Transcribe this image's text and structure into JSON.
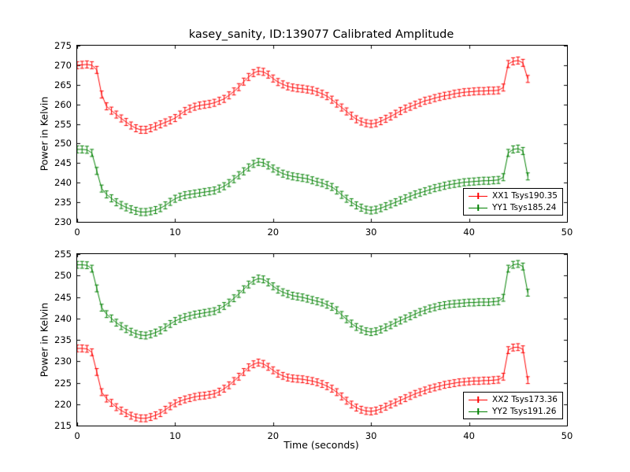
{
  "figure": {
    "title": "kasey_sanity, ID:139077 Calibrated Amplitude",
    "xlabel": "Time (seconds)",
    "background": "#ffffff"
  },
  "colors": {
    "red": "#ff0000",
    "green": "#008000",
    "frame": "#000000"
  },
  "chart_data": [
    {
      "type": "line",
      "subplot": "top",
      "ylabel": "Power in Kelvin",
      "xlim": [
        0,
        50
      ],
      "ylim": [
        230,
        275
      ],
      "xticks": [
        0,
        10,
        20,
        30,
        40,
        50
      ],
      "yticks": [
        230,
        235,
        240,
        245,
        250,
        255,
        260,
        265,
        270,
        275
      ],
      "legend_position": "lower right",
      "x": [
        0,
        0.5,
        1,
        1.5,
        2,
        2.5,
        3,
        3.5,
        4,
        4.5,
        5,
        5.5,
        6,
        6.5,
        7,
        7.5,
        8,
        8.5,
        9,
        9.5,
        10,
        10.5,
        11,
        11.5,
        12,
        12.5,
        13,
        13.5,
        14,
        14.5,
        15,
        15.5,
        16,
        16.5,
        17,
        17.5,
        18,
        18.5,
        19,
        19.5,
        20,
        20.5,
        21,
        21.5,
        22,
        22.5,
        23,
        23.5,
        24,
        24.5,
        25,
        25.5,
        26,
        26.5,
        27,
        27.5,
        28,
        28.5,
        29,
        29.5,
        30,
        30.5,
        31,
        31.5,
        32,
        32.5,
        33,
        33.5,
        34,
        34.5,
        35,
        35.5,
        36,
        36.5,
        37,
        37.5,
        38,
        38.5,
        39,
        39.5,
        40,
        40.5,
        41,
        41.5,
        42,
        42.5,
        43,
        43.5,
        44,
        44.5,
        45,
        45.5,
        46
      ],
      "series": [
        {
          "name": "XX1 Tsys190.35",
          "color": "#ff0000",
          "yerr": 0.9,
          "values": [
            270.0,
            270.1,
            270.2,
            270.0,
            268.8,
            262.5,
            259.5,
            258.4,
            257.4,
            256.4,
            255.5,
            254.6,
            253.9,
            253.5,
            253.5,
            253.9,
            254.4,
            254.9,
            255.4,
            255.9,
            256.5,
            257.4,
            258.3,
            258.9,
            259.4,
            259.7,
            259.9,
            260.1,
            260.4,
            260.9,
            261.4,
            262.3,
            263.3,
            264.4,
            265.8,
            267.0,
            268.0,
            268.5,
            268.3,
            267.6,
            266.6,
            265.7,
            265.1,
            264.6,
            264.3,
            264.1,
            264.0,
            263.8,
            263.6,
            263.2,
            262.7,
            262.1,
            261.2,
            260.2,
            259.2,
            258.2,
            257.1,
            256.2,
            255.6,
            255.2,
            255.0,
            255.2,
            255.7,
            256.3,
            256.9,
            257.6,
            258.3,
            258.9,
            259.4,
            259.9,
            260.4,
            260.9,
            261.2,
            261.6,
            261.9,
            262.2,
            262.4,
            262.7,
            262.9,
            263.1,
            263.2,
            263.3,
            263.4,
            263.4,
            263.5,
            263.5,
            263.6,
            264.3,
            270.3,
            271.0,
            271.2,
            270.6,
            266.5
          ]
        },
        {
          "name": "YY1 Tsys185.24",
          "color": "#008000",
          "yerr": 0.9,
          "values": [
            248.5,
            248.5,
            248.4,
            247.6,
            243.0,
            238.5,
            237.0,
            236.0,
            235.0,
            234.3,
            233.7,
            233.2,
            232.8,
            232.5,
            232.5,
            232.7,
            233.0,
            233.5,
            234.2,
            235.1,
            235.9,
            236.4,
            236.8,
            237.0,
            237.2,
            237.4,
            237.6,
            237.8,
            238.0,
            238.5,
            239.1,
            239.9,
            240.9,
            241.9,
            242.9,
            243.9,
            244.8,
            245.3,
            245.1,
            244.4,
            243.6,
            242.9,
            242.3,
            241.9,
            241.6,
            241.4,
            241.2,
            241.0,
            240.6,
            240.2,
            239.9,
            239.4,
            238.9,
            238.0,
            236.9,
            235.9,
            235.0,
            234.2,
            233.6,
            233.1,
            232.9,
            233.1,
            233.5,
            234.0,
            234.5,
            235.0,
            235.5,
            236.0,
            236.5,
            237.0,
            237.4,
            237.8,
            238.2,
            238.6,
            238.9,
            239.2,
            239.5,
            239.7,
            239.9,
            240.1,
            240.2,
            240.3,
            240.4,
            240.5,
            240.5,
            240.6,
            240.7,
            241.4,
            247.6,
            248.5,
            248.7,
            248.1,
            241.6
          ]
        }
      ]
    },
    {
      "type": "line",
      "subplot": "bottom",
      "ylabel": "Power in Kelvin",
      "xlim": [
        0,
        50
      ],
      "ylim": [
        215,
        255
      ],
      "xticks": [
        0,
        10,
        20,
        30,
        40,
        50
      ],
      "yticks": [
        215,
        220,
        225,
        230,
        235,
        240,
        245,
        250,
        255
      ],
      "legend_position": "lower right",
      "x": [
        0,
        0.5,
        1,
        1.5,
        2,
        2.5,
        3,
        3.5,
        4,
        4.5,
        5,
        5.5,
        6,
        6.5,
        7,
        7.5,
        8,
        8.5,
        9,
        9.5,
        10,
        10.5,
        11,
        11.5,
        12,
        12.5,
        13,
        13.5,
        14,
        14.5,
        15,
        15.5,
        16,
        16.5,
        17,
        17.5,
        18,
        18.5,
        19,
        19.5,
        20,
        20.5,
        21,
        21.5,
        22,
        22.5,
        23,
        23.5,
        24,
        24.5,
        25,
        25.5,
        26,
        26.5,
        27,
        27.5,
        28,
        28.5,
        29,
        29.5,
        30,
        30.5,
        31,
        31.5,
        32,
        32.5,
        33,
        33.5,
        34,
        34.5,
        35,
        35.5,
        36,
        36.5,
        37,
        37.5,
        38,
        38.5,
        39,
        39.5,
        40,
        40.5,
        41,
        41.5,
        42,
        42.5,
        43,
        43.5,
        44,
        44.5,
        45,
        45.5,
        46
      ],
      "series": [
        {
          "name": "XX2 Tsys173.36",
          "color": "#ff0000",
          "yerr": 0.8,
          "values": [
            233.0,
            233.0,
            232.9,
            232.1,
            227.5,
            222.8,
            221.3,
            220.3,
            219.3,
            218.5,
            217.9,
            217.3,
            216.9,
            216.7,
            216.7,
            217.0,
            217.4,
            217.9,
            218.7,
            219.5,
            220.2,
            220.7,
            221.1,
            221.4,
            221.7,
            221.9,
            222.0,
            222.2,
            222.4,
            222.9,
            223.6,
            224.4,
            225.4,
            226.4,
            227.5,
            228.6,
            229.3,
            229.7,
            229.4,
            228.7,
            227.9,
            227.1,
            226.6,
            226.2,
            226.0,
            225.9,
            225.8,
            225.6,
            225.4,
            225.1,
            224.7,
            224.2,
            223.6,
            222.8,
            221.8,
            220.8,
            219.9,
            219.2,
            218.7,
            218.4,
            218.3,
            218.5,
            218.9,
            219.4,
            219.9,
            220.4,
            220.9,
            221.4,
            221.9,
            222.4,
            222.8,
            223.2,
            223.6,
            223.9,
            224.2,
            224.5,
            224.7,
            224.9,
            225.1,
            225.2,
            225.3,
            225.4,
            225.4,
            225.5,
            225.5,
            225.6,
            225.7,
            226.4,
            232.6,
            233.2,
            233.3,
            232.8,
            225.6
          ]
        },
        {
          "name": "YY2 Tsys191.26",
          "color": "#008000",
          "yerr": 0.8,
          "values": [
            252.5,
            252.5,
            252.4,
            251.6,
            247.0,
            242.5,
            241.0,
            240.0,
            239.0,
            238.2,
            237.5,
            236.9,
            236.4,
            236.1,
            236.0,
            236.3,
            236.7,
            237.2,
            237.9,
            238.7,
            239.4,
            239.9,
            240.3,
            240.6,
            240.9,
            241.1,
            241.3,
            241.5,
            241.7,
            242.2,
            242.9,
            243.7,
            244.7,
            245.7,
            246.8,
            247.9,
            248.8,
            249.3,
            249.1,
            248.4,
            247.5,
            246.7,
            246.1,
            245.7,
            245.3,
            245.1,
            244.9,
            244.6,
            244.3,
            244.0,
            243.7,
            243.2,
            242.7,
            241.9,
            240.8,
            239.8,
            238.8,
            238.0,
            237.4,
            237.0,
            236.8,
            237.0,
            237.4,
            237.9,
            238.4,
            239.0,
            239.5,
            240.0,
            240.5,
            241.0,
            241.5,
            241.9,
            242.3,
            242.6,
            242.9,
            243.1,
            243.3,
            243.4,
            243.5,
            243.6,
            243.7,
            243.7,
            243.8,
            243.8,
            243.8,
            243.9,
            244.0,
            244.8,
            251.6,
            252.5,
            252.7,
            252.1,
            246.0
          ]
        }
      ]
    }
  ]
}
